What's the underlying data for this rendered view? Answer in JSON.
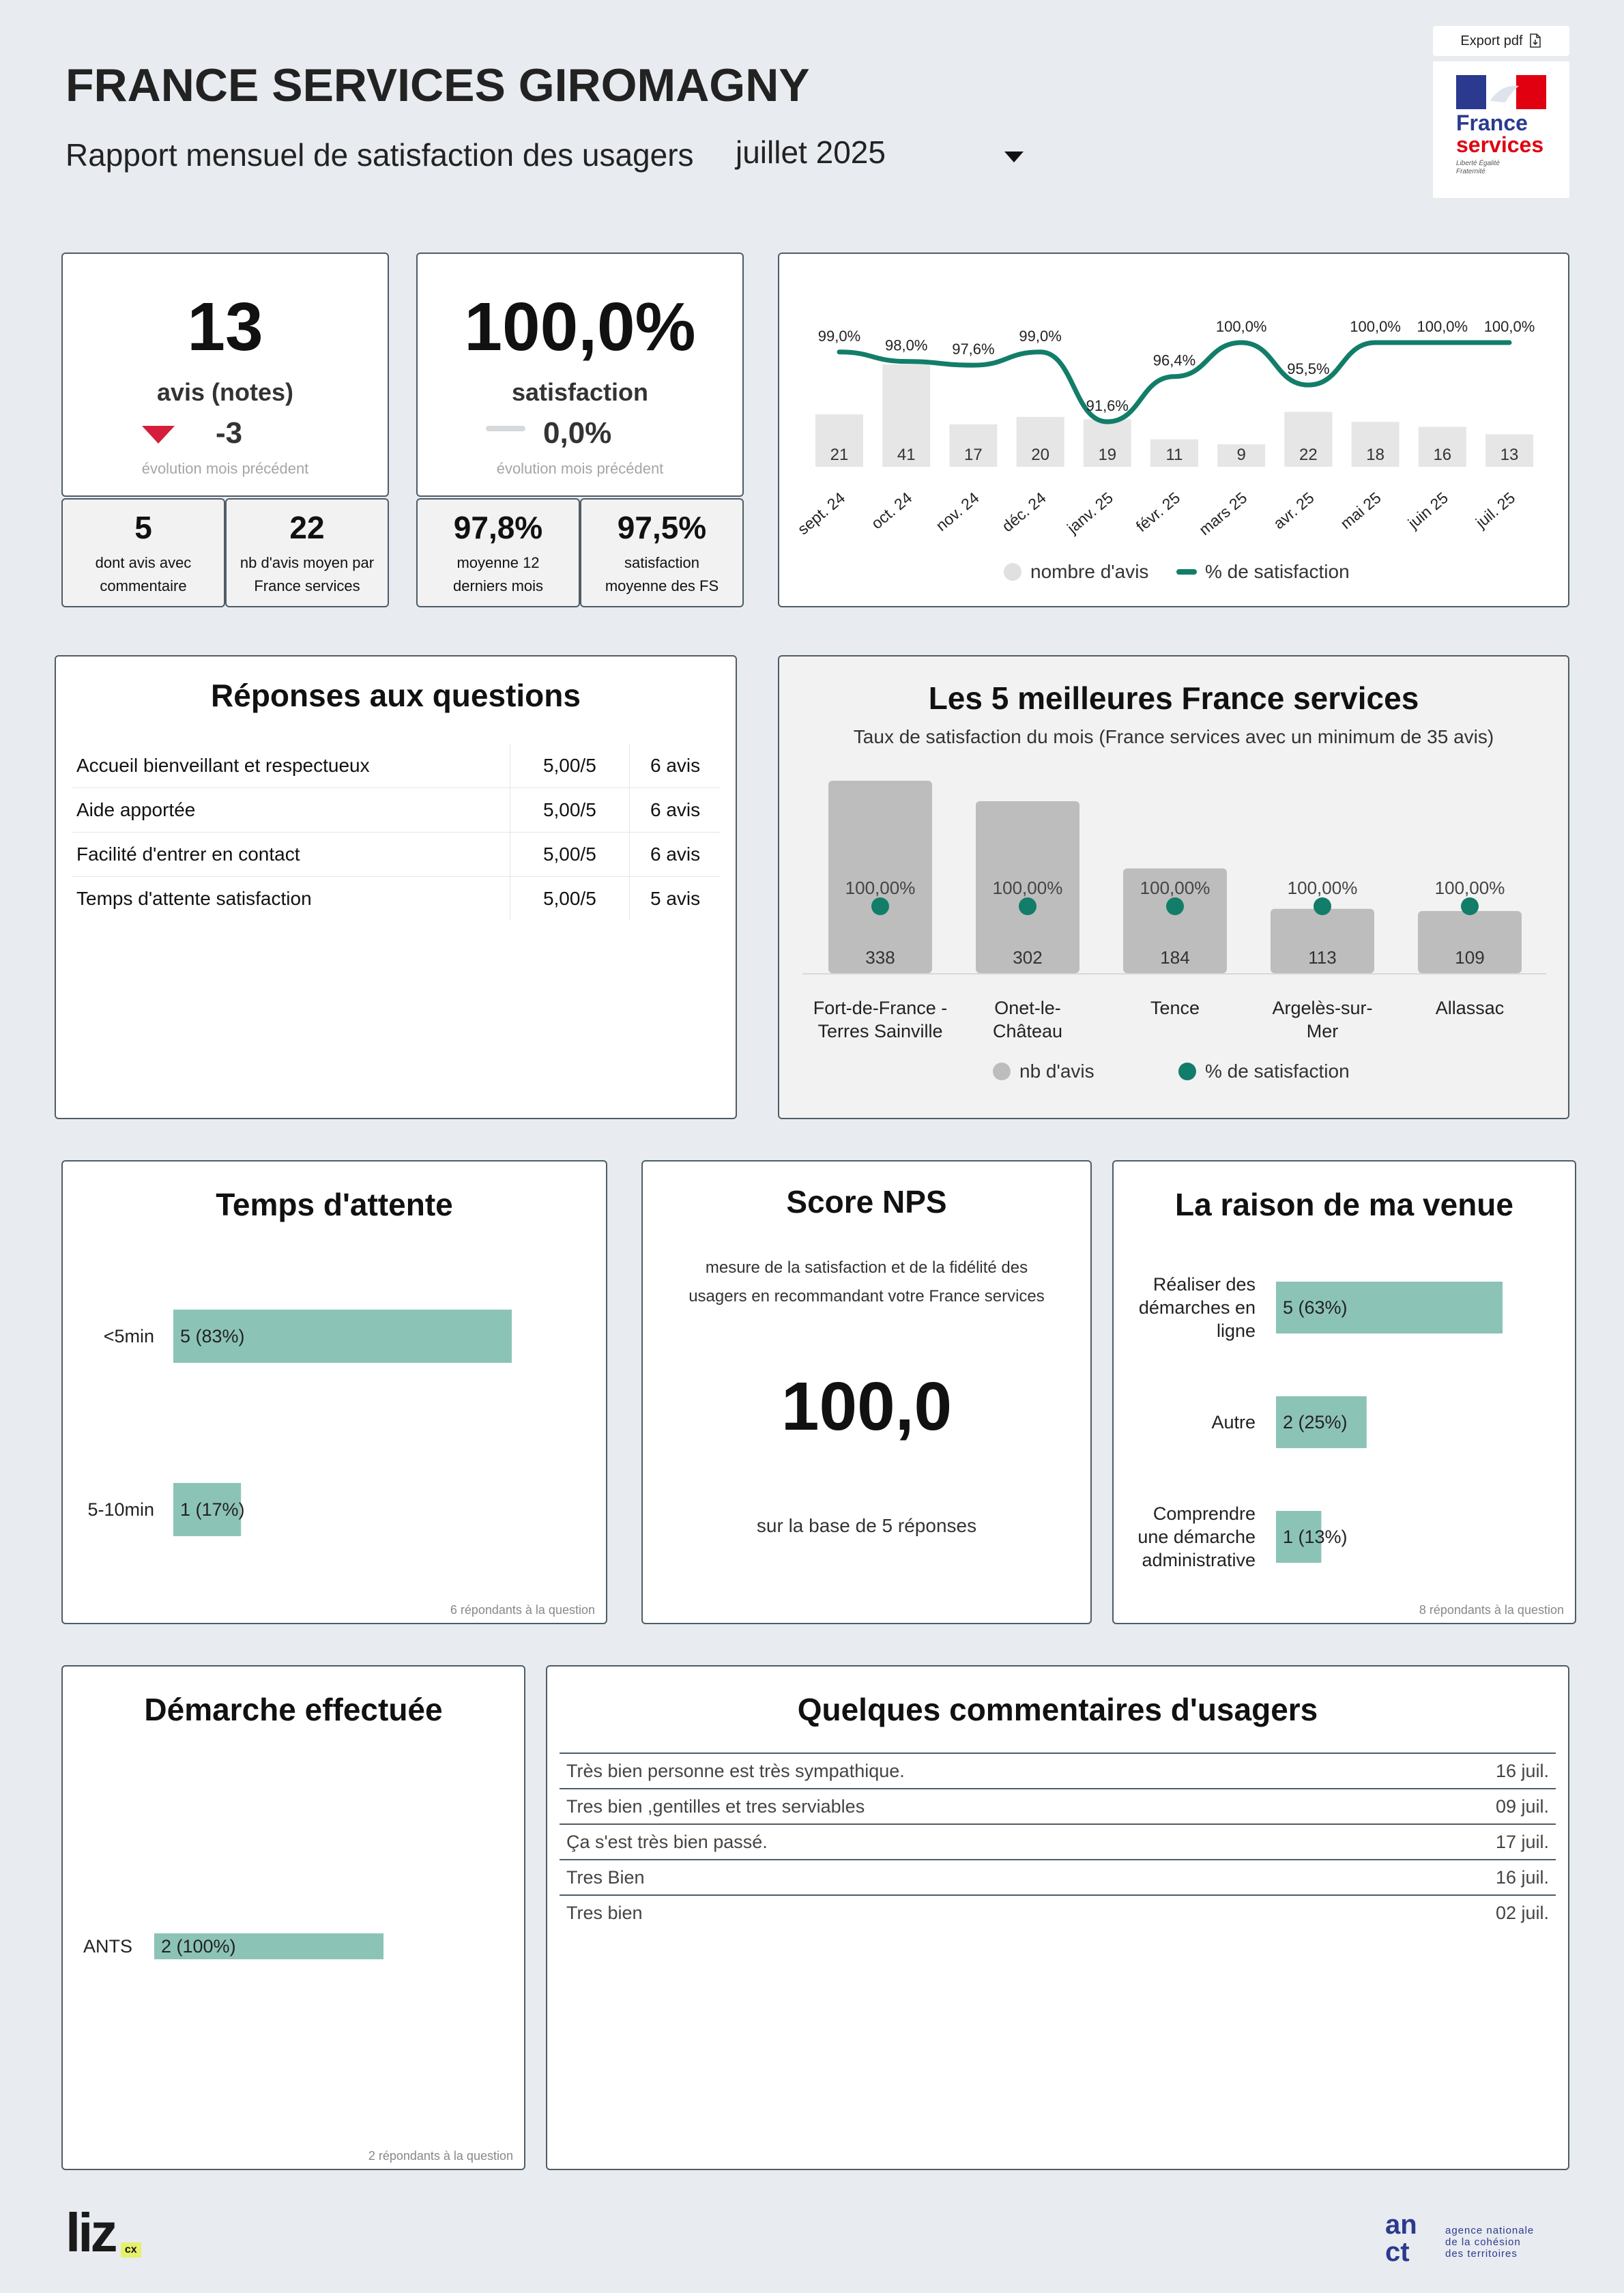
{
  "header": {
    "title": "FRANCE SERVICES GIROMAGNY",
    "subtitle": "Rapport mensuel de satisfaction des usagers",
    "month": "juillet 2025",
    "export_label": "Export pdf",
    "logo_line1": "France",
    "logo_line2": "services",
    "logo_motto": "Liberté Égalité Fraternité"
  },
  "kpi": {
    "avis_value": "13",
    "avis_label": "avis (notes)",
    "avis_evolution": "-3",
    "avis_evolution_caption": "évolution mois précédent",
    "satisfaction_value": "100,0%",
    "satisfaction_label": "satisfaction",
    "satisfaction_evolution": "0,0%",
    "satisfaction_evolution_caption": "évolution mois précédent",
    "small": [
      {
        "value": "5",
        "label": "dont avis avec commentaire"
      },
      {
        "value": "22",
        "label": "nb d'avis moyen par France services"
      },
      {
        "value": "97,8%",
        "label": "moyenne 12 derniers mois"
      },
      {
        "value": "97,5%",
        "label": "satisfaction moyenne des FS"
      }
    ]
  },
  "trend_chart": {
    "legend_bars": "nombre d'avis",
    "legend_line": "% de satisfaction"
  },
  "questions": {
    "title": "Réponses aux questions",
    "rows": [
      {
        "label": "Accueil bienveillant et respectueux",
        "score": "5,00/5",
        "count": "6 avis"
      },
      {
        "label": "Aide apportée",
        "score": "5,00/5",
        "count": "6 avis"
      },
      {
        "label": "Facilité d'entrer en contact",
        "score": "5,00/5",
        "count": "6 avis"
      },
      {
        "label": "Temps d'attente satisfaction",
        "score": "5,00/5",
        "count": "5 avis"
      }
    ]
  },
  "top5": {
    "title": "Les 5 meilleures France services",
    "subtitle": "Taux de satisfaction du mois (France services avec un minimum de 35 avis)",
    "legend_bars": "nb d'avis",
    "legend_dots": "% de satisfaction",
    "names": [
      [
        "Fort-de-France -",
        "Terres Sainville"
      ],
      [
        "Onet-le-",
        "Château"
      ],
      [
        "Tence",
        ""
      ],
      [
        "Argelès-sur-",
        "Mer"
      ],
      [
        "Allassac",
        ""
      ]
    ]
  },
  "wait": {
    "title": "Temps d'attente",
    "footer": "6 répondants à la question"
  },
  "nps": {
    "title": "Score NPS",
    "description_line1": "mesure de la satisfaction et de la fidélité des",
    "description_line2": "usagers en recommandant votre France services",
    "value": "100,0",
    "base": "sur la base de 5 réponses"
  },
  "reason": {
    "title": "La raison de ma venue",
    "footer": "8 répondants à la question"
  },
  "demarche": {
    "title": "Démarche effectuée",
    "footer": "2 répondants à la question"
  },
  "comments": {
    "title": "Quelques commentaires d'usagers",
    "rows": [
      {
        "text": "Très bien personne est très sympathique.",
        "date": "16 juil."
      },
      {
        "text": "Tres bien ,gentilles et tres serviables",
        "date": "09 juil."
      },
      {
        "text": "Ça s'est très bien passé.",
        "date": "17 juil."
      },
      {
        "text": "Tres Bien",
        "date": "16 juil."
      },
      {
        "text": "Tres bien",
        "date": "02 juil."
      }
    ]
  },
  "footer": {
    "liz_logo": "liz",
    "liz_badge": "cx",
    "anct_logo": "an ct",
    "anct_text": [
      "agence nationale",
      "de la cohésion",
      "des territoires"
    ]
  },
  "colors": {
    "accent_green": "#127d69",
    "bar_green": "#8cc3b7",
    "bar_grey": "#bdbdbd",
    "bar_light": "#e6e6e6",
    "down_red": "#d41e3c"
  },
  "chart_data": [
    {
      "type": "bar",
      "categories": [
        "sept. 24",
        "oct. 24",
        "nov. 24",
        "déc. 24",
        "janv. 25",
        "févr. 25",
        "mars 25",
        "avr. 25",
        "mai 25",
        "juin 25",
        "juil. 25"
      ],
      "series": [
        {
          "name": "nombre d'avis",
          "type": "bar",
          "values": [
            21,
            41,
            17,
            20,
            19,
            11,
            9,
            22,
            18,
            16,
            13
          ],
          "labels": [
            "21",
            "41",
            "17",
            "20",
            "19",
            "11",
            "9",
            "22",
            "18",
            "16",
            "13"
          ]
        },
        {
          "name": "% de satisfaction",
          "type": "line",
          "values": [
            99.0,
            98.0,
            97.6,
            99.0,
            91.6,
            96.4,
            100.0,
            95.5,
            100.0,
            100.0,
            100.0
          ],
          "labels": [
            "99,0%",
            "98,0%",
            "97,6%",
            "99,0%",
            "91,6%",
            "96,4%",
            "100,0%",
            "95,5%",
            "100,0%",
            "100,0%",
            "100,0%"
          ]
        }
      ],
      "legend": "bottom"
    },
    {
      "type": "bar",
      "title": "Les 5 meilleures France services",
      "categories": [
        "Fort-de-France - Terres Sainville",
        "Onet-le-Château",
        "Tence",
        "Argelès-sur-Mer",
        "Allassac"
      ],
      "series": [
        {
          "name": "nb d'avis",
          "type": "bar",
          "values": [
            338,
            302,
            184,
            113,
            109
          ],
          "labels": [
            "338",
            "302",
            "184",
            "113",
            "109"
          ]
        },
        {
          "name": "% de satisfaction",
          "type": "scatter",
          "values": [
            100,
            100,
            100,
            100,
            100
          ],
          "labels": [
            "100,00%",
            "100,00%",
            "100,00%",
            "100,00%",
            "100,00%"
          ]
        }
      ],
      "legend": "bottom"
    },
    {
      "type": "bar",
      "title": "Temps d'attente",
      "orientation": "horizontal",
      "categories": [
        "<5min",
        "5-10min"
      ],
      "values": [
        5,
        1
      ],
      "labels": [
        "5 (83%)",
        "1 (17%)"
      ]
    },
    {
      "type": "bar",
      "title": "La raison de ma venue",
      "orientation": "horizontal",
      "categories": [
        [
          "Réaliser des",
          "démarches en",
          "ligne"
        ],
        [
          "Autre"
        ],
        [
          "Comprendre",
          "une démarche",
          "administrative"
        ]
      ],
      "values": [
        5,
        2,
        1
      ],
      "labels": [
        "5 (63%)",
        "2 (25%)",
        "1 (13%)"
      ]
    },
    {
      "type": "bar",
      "title": "Démarche effectuée",
      "orientation": "horizontal",
      "categories": [
        "ANTS"
      ],
      "values": [
        2
      ],
      "labels": [
        "2 (100%)"
      ]
    }
  ]
}
